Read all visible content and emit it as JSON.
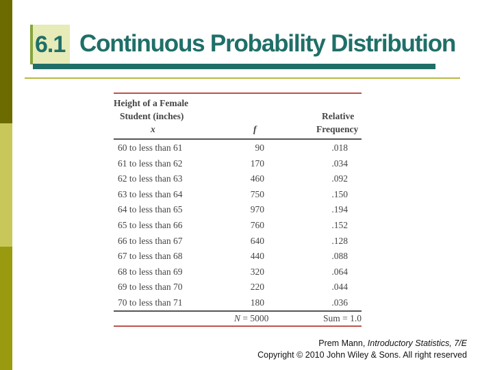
{
  "title": {
    "number": "6.1",
    "text": "Continuous Probability Distribution"
  },
  "table": {
    "header": {
      "col1_line1": "Height of a Female",
      "col1_line2": "Student (inches)",
      "col1_var": "x",
      "col2_var": "f",
      "col3_line1": "Relative",
      "col3_line2": "Frequency"
    },
    "rows": [
      [
        "60 to less than 61",
        "90",
        ".018"
      ],
      [
        "61 to less than 62",
        "170",
        ".034"
      ],
      [
        "62 to less than 63",
        "460",
        ".092"
      ],
      [
        "63 to less than 64",
        "750",
        ".150"
      ],
      [
        "64 to less than 65",
        "970",
        ".194"
      ],
      [
        "65 to less than 66",
        "760",
        ".152"
      ],
      [
        "66 to less than 67",
        "640",
        ".128"
      ],
      [
        "67 to less than 68",
        "440",
        ".088"
      ],
      [
        "68 to less than 69",
        "320",
        ".064"
      ],
      [
        "69 to less than 70",
        "220",
        ".044"
      ],
      [
        "70 to less than 71",
        "180",
        ".036"
      ]
    ],
    "total_n_symbol": "N",
    "total_n_value": " = 5000",
    "total_sum": "Sum = 1.0"
  },
  "footer": {
    "line1_prefix": "Prem Mann, ",
    "line1_book": "Introductory Statistics, 7/E",
    "line2": "Copyright © 2010 John Wiley & Sons. All right reserved"
  },
  "colors": {
    "title": "#1f6f68",
    "accent_rule": "#c0504d",
    "sidebar_dark": "#6b6b00",
    "sidebar_light": "#c8c85a"
  }
}
